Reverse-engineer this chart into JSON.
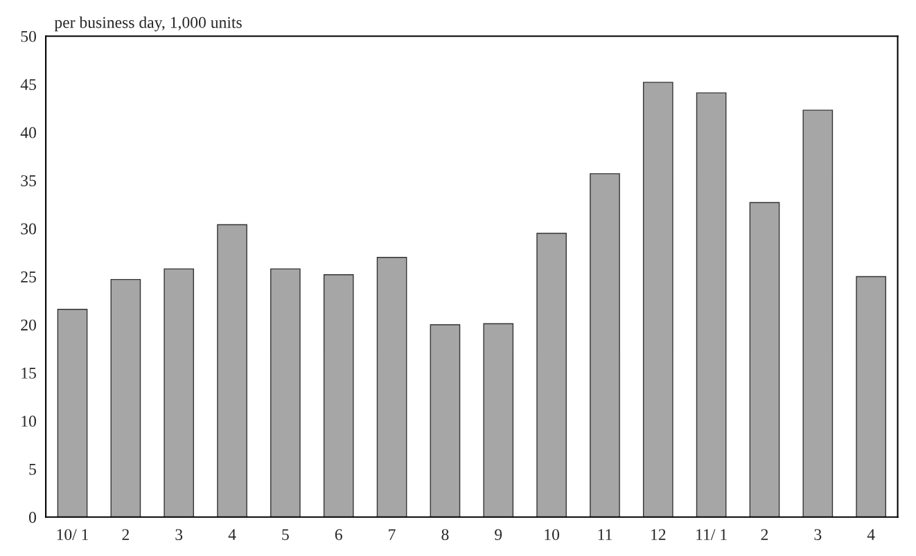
{
  "chart_data": {
    "type": "bar",
    "ylabel": "per business day, 1,000 units",
    "categories": [
      "10/ 1",
      "2",
      "3",
      "4",
      "5",
      "6",
      "7",
      "8",
      "9",
      "10",
      "11",
      "12",
      "11/ 1",
      "2",
      "3",
      "4"
    ],
    "values": [
      21.6,
      24.7,
      25.8,
      30.4,
      25.8,
      25.2,
      27.0,
      20.0,
      20.1,
      29.5,
      35.7,
      45.2,
      44.1,
      32.7,
      42.3,
      25.0
    ],
    "color": "#a6a6a6",
    "ylim": [
      0,
      50
    ],
    "yticks": [
      0,
      5,
      10,
      15,
      20,
      25,
      30,
      35,
      40,
      45,
      50
    ],
    "grid": false,
    "legend": false
  }
}
